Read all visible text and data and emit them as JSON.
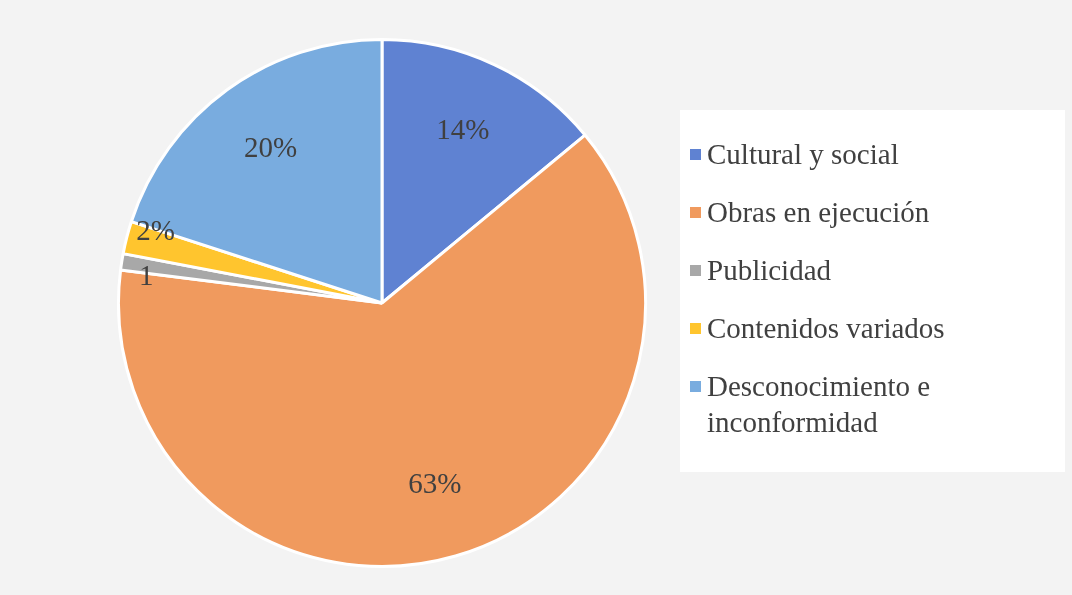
{
  "chart_data": {
    "type": "pie",
    "categories": [
      "Cultural y social",
      "Obras en ejecución",
      "Publicidad",
      "Contenidos variados",
      "Desconocimiento e inconformidad"
    ],
    "values": [
      14,
      63,
      1,
      2,
      20
    ],
    "value_labels": [
      "14%",
      "63%",
      "1",
      "2%",
      "20%"
    ],
    "colors": [
      "#5f82d2",
      "#f09a5e",
      "#a8a8a8",
      "#ffc52e",
      "#79acdf"
    ],
    "legend": "right"
  }
}
